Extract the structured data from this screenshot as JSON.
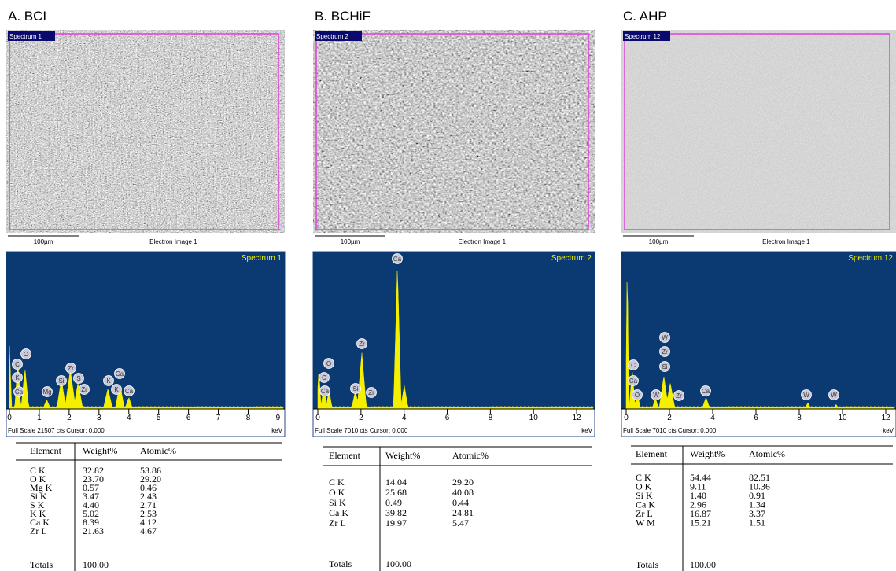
{
  "panels": [
    {
      "title": "A. BCI",
      "image": {
        "label": "Spectrum 1",
        "scale": "100µm",
        "caption": "Electron Image 1"
      },
      "spectrum": {
        "title": "Spectrum 1",
        "peaks": [
          "O",
          "C",
          "K",
          "Ca",
          "Mg",
          "Si",
          "Zr",
          "S",
          "Zr",
          "K",
          "Ca",
          "K",
          "Ca"
        ],
        "xlim": [
          0,
          9.2
        ],
        "xticks": [
          0,
          1,
          2,
          3,
          4,
          5,
          6,
          7,
          8,
          9
        ],
        "footer": "Full Scale 21507 cts Cursor: 0.000",
        "unit": "keV"
      },
      "table": {
        "headers": [
          "Element",
          "Weight%",
          "Atomic%"
        ],
        "rows": [
          [
            "C K",
            "32.82",
            "53.86"
          ],
          [
            "O K",
            "23.70",
            "29.20"
          ],
          [
            "Mg K",
            "0.57",
            "0.46"
          ],
          [
            "Si K",
            "3.47",
            "2.43"
          ],
          [
            "S K",
            "4.40",
            "2.71"
          ],
          [
            "K K",
            "5.02",
            "2.53"
          ],
          [
            "Ca K",
            "8.39",
            "4.12"
          ],
          [
            "Zr L",
            "21.63",
            "4.67"
          ]
        ],
        "totals": [
          "Totals",
          "100.00"
        ]
      }
    },
    {
      "title": "B. BCHiF",
      "image": {
        "label": "Spectrum 2",
        "scale": "100µm",
        "caption": "Electron Image 1"
      },
      "spectrum": {
        "title": "Spectrum 2",
        "peaks": [
          "Ca",
          "Zr",
          "O",
          "C",
          "Ca",
          "Si",
          "Zr"
        ],
        "xlim": [
          0,
          12.8
        ],
        "xticks": [
          0,
          2,
          4,
          6,
          8,
          10,
          12
        ],
        "footer": "Full Scale 7010 cts Cursor: 0.000",
        "unit": "keV"
      },
      "table": {
        "headers": [
          "Element",
          "Weight%",
          "Atomic%"
        ],
        "rows": [
          [
            "C K",
            "14.04",
            "29.20"
          ],
          [
            "O K",
            "25.68",
            "40.08"
          ],
          [
            "Si K",
            "0.49",
            "0.44"
          ],
          [
            "Ca K",
            "39.82",
            "24.81"
          ],
          [
            "Zr L",
            "19.97",
            "5.47"
          ]
        ],
        "totals": [
          "Totals",
          "100.00"
        ]
      }
    },
    {
      "title": "C. AHP",
      "image": {
        "label": "Spectrum 12",
        "scale": "100µm",
        "caption": "Electron Image 1"
      },
      "spectrum": {
        "title": "Spectrum 12",
        "peaks": [
          "W",
          "Zr",
          "Si",
          "C",
          "Ca",
          "O",
          "W",
          "Zr",
          "Ca",
          "W",
          "W"
        ],
        "xlim": [
          0,
          12.4
        ],
        "xticks": [
          0,
          2,
          4,
          6,
          8,
          10,
          12
        ],
        "footer": "Full Scale 7010 cts Cursor: 0.000",
        "unit": "keV"
      },
      "table": {
        "headers": [
          "Element",
          "Weight%",
          "Atomic%"
        ],
        "rows": [
          [
            "C K",
            "54.44",
            "82.51"
          ],
          [
            "O K",
            "9.11",
            "10.36"
          ],
          [
            "Si K",
            "1.40",
            "0.91"
          ],
          [
            "Ca K",
            "2.96",
            "1.34"
          ],
          [
            "Zr L",
            "16.87",
            "3.37"
          ],
          [
            "W M",
            "15.21",
            "1.51"
          ]
        ],
        "totals": [
          "Totals",
          "100.00"
        ]
      }
    }
  ]
}
